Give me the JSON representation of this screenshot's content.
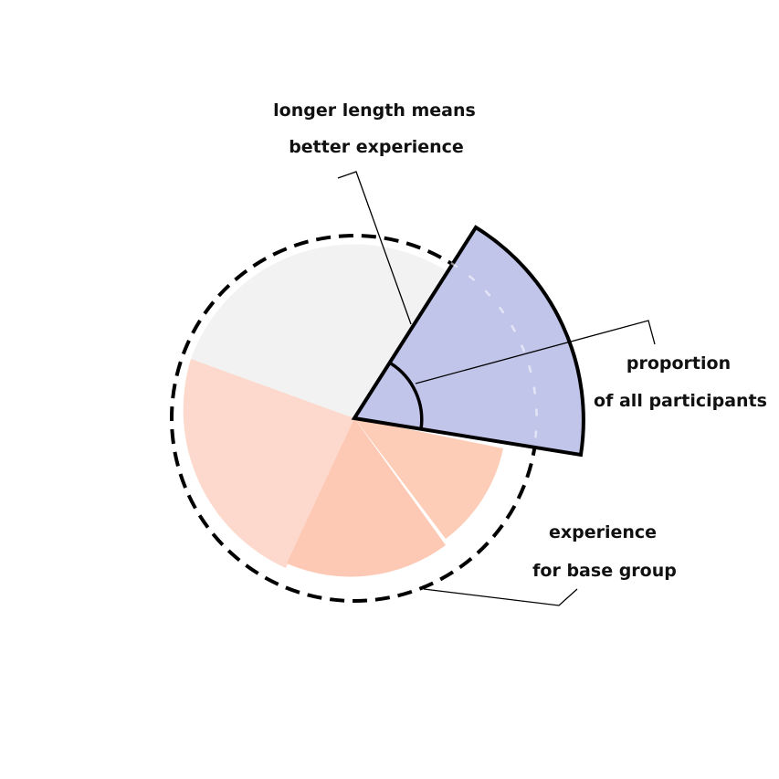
{
  "annotations": {
    "length": {
      "line1": "longer length means",
      "line2": "better experience"
    },
    "proportion": {
      "line1": "proportion",
      "line2": "of all participants"
    },
    "base": {
      "line1": "experience",
      "line2": "for base group"
    }
  },
  "colors": {
    "highlight": "#c2c5ea",
    "neutral": "#f2f2f2",
    "salmon_light": "#fcd9cc",
    "salmon_medium": "#fec9b4",
    "salmon_right": "#fdcdb8",
    "outline": "#000000"
  }
}
